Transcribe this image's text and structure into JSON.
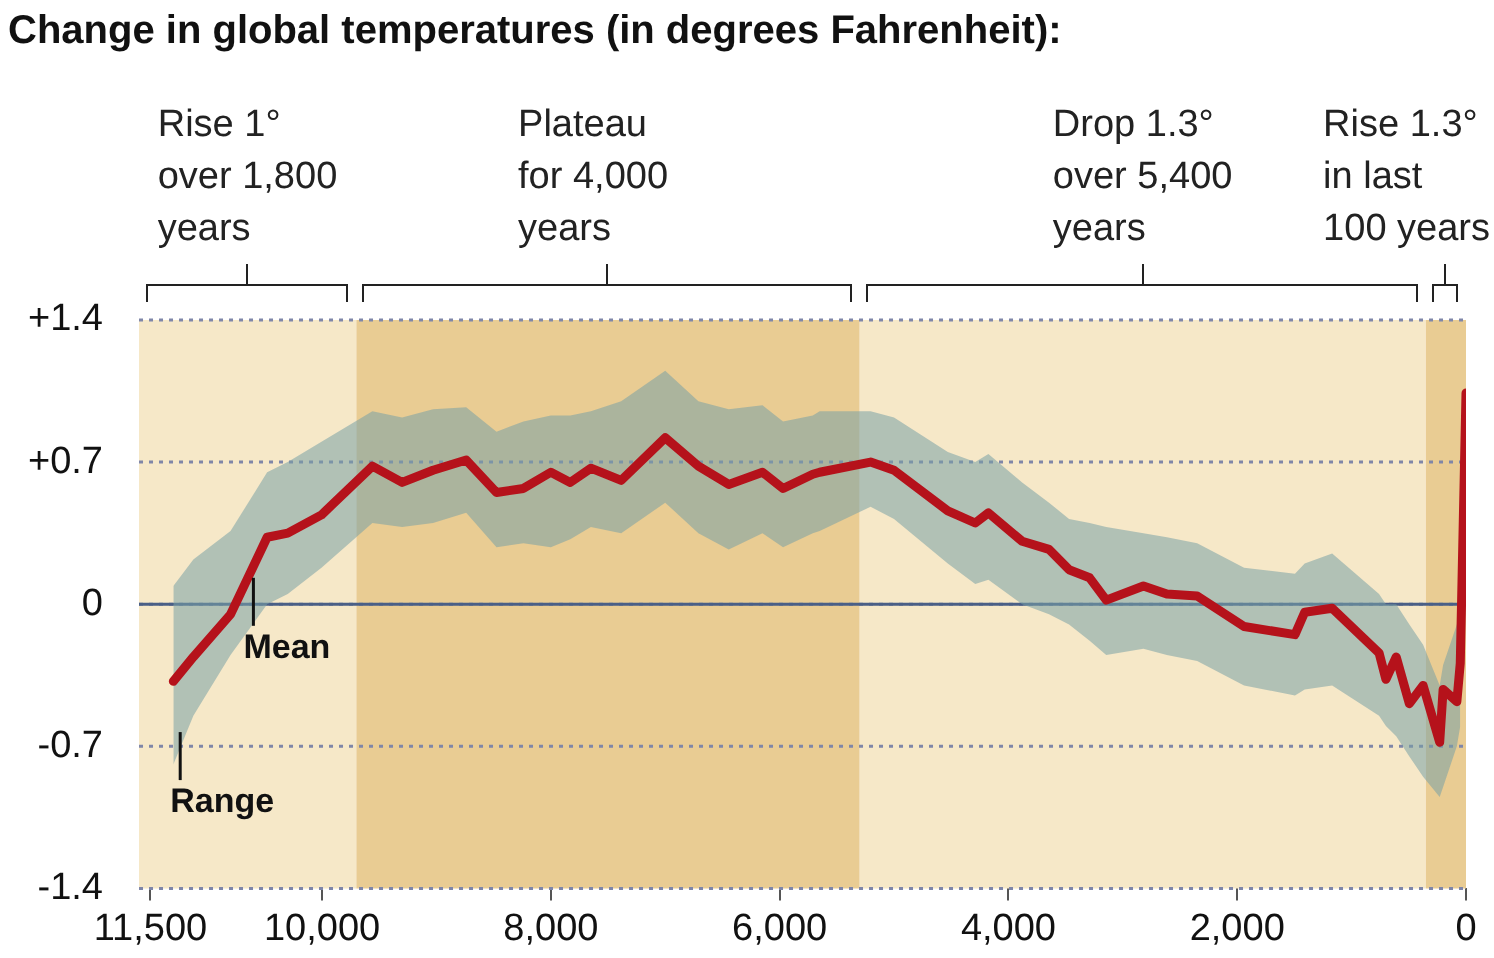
{
  "chart_data": {
    "type": "line",
    "title": "Change in global temperatures (in degrees Fahrenheit):",
    "x": [
      11300,
      11125,
      10800,
      10480,
      10300,
      10005,
      9560,
      9300,
      9030,
      8740,
      8475,
      8240,
      8000,
      7830,
      7650,
      7385,
      7000,
      6710,
      6445,
      6150,
      5970,
      5710,
      5650,
      5205,
      5000,
      4530,
      4290,
      4175,
      3880,
      3645,
      3470,
      3290,
      3145,
      2820,
      2615,
      2350,
      1940,
      1495,
      1410,
      1170,
      760,
      700,
      610,
      495,
      375,
      230,
      200,
      80,
      50,
      0
    ],
    "series": [
      {
        "color": "#b5121b",
        "values": [
          -0.38,
          -0.26,
          -0.05,
          0.33,
          0.35,
          0.44,
          0.68,
          0.6,
          0.66,
          0.71,
          0.55,
          0.57,
          0.65,
          0.6,
          0.67,
          0.61,
          0.82,
          0.68,
          0.59,
          0.65,
          0.57,
          0.64,
          0.65,
          0.7,
          0.66,
          0.46,
          0.4,
          0.45,
          0.31,
          0.27,
          0.17,
          0.13,
          0.02,
          0.09,
          0.05,
          0.04,
          -0.11,
          -0.15,
          -0.04,
          -0.02,
          -0.24,
          -0.37,
          -0.26,
          -0.49,
          -0.4,
          -0.68,
          -0.42,
          -0.48,
          -0.29,
          1.04
        ],
        "upper": [
          0.09,
          0.22,
          0.36,
          0.65,
          0.7,
          0.8,
          0.95,
          0.92,
          0.96,
          0.97,
          0.85,
          0.9,
          0.93,
          0.93,
          0.95,
          1.0,
          1.15,
          1.0,
          0.96,
          0.98,
          0.9,
          0.93,
          0.95,
          0.95,
          0.92,
          0.75,
          0.7,
          0.74,
          0.6,
          0.5,
          0.42,
          0.4,
          0.38,
          0.35,
          0.33,
          0.3,
          0.18,
          0.15,
          0.2,
          0.25,
          0.05,
          0.0,
          0.0,
          -0.1,
          -0.2,
          -0.4,
          -0.3,
          -0.1,
          0.0,
          null
        ],
        "lower": [
          -0.79,
          -0.55,
          -0.25,
          0.0,
          0.05,
          0.18,
          0.4,
          0.38,
          0.4,
          0.45,
          0.28,
          0.3,
          0.28,
          0.32,
          0.38,
          0.35,
          0.5,
          0.35,
          0.27,
          0.35,
          0.28,
          0.35,
          0.36,
          0.48,
          0.42,
          0.2,
          0.1,
          0.12,
          0.0,
          -0.05,
          -0.1,
          -0.18,
          -0.25,
          -0.22,
          -0.25,
          -0.28,
          -0.4,
          -0.45,
          -0.42,
          -0.4,
          -0.55,
          -0.6,
          -0.65,
          -0.75,
          -0.85,
          -0.95,
          -0.9,
          -0.7,
          -0.6,
          null
        ]
      }
    ],
    "xlim": [
      11600,
      0
    ],
    "xticks": [
      {
        "value": 11500,
        "label": "11,500"
      },
      {
        "value": 10000,
        "label": "10,000"
      },
      {
        "value": 8000,
        "label": "8,000"
      },
      {
        "value": 6000,
        "label": "6,000"
      },
      {
        "value": 4000,
        "label": "4,000"
      },
      {
        "value": 2000,
        "label": "2,000"
      },
      0
    ],
    "ylim": [
      -1.4,
      1.4
    ],
    "yticks": [
      {
        "value": 1.4,
        "label": "+1.4"
      },
      {
        "value": 0.7,
        "label": "+0.7"
      },
      0,
      {
        "value": -0.7,
        "label": "-0.7"
      },
      {
        "value": -1.4,
        "label": "-1.4"
      }
    ],
    "grid": "y",
    "legend": false,
    "marker": "none",
    "ref_lines": [
      {
        "axis": "y",
        "value": 0,
        "color": "#4a5f86"
      }
    ],
    "bands": [
      {
        "axis": "x",
        "from": 11600,
        "to": 9700,
        "label": "Rise 1°\nover 1,800\nyears",
        "color": "#f6e8c8"
      },
      {
        "axis": "x",
        "from": 9700,
        "to": 5300,
        "label": "Plateau\nfor 4,000\nyears",
        "color": "#e9cc93"
      },
      {
        "axis": "x",
        "from": 5300,
        "to": 350,
        "label": "Drop 1.3°\nover 5,400\nyears",
        "color": "#f6e8c8"
      },
      {
        "axis": "x",
        "from": 350,
        "to": 0,
        "label": "Rise 1.3°\nin last\n100 years",
        "color": "#e9cc93"
      }
    ],
    "annotations": [
      {
        "text": "Mean",
        "x": 10600,
        "y": 0.13
      },
      {
        "text": "Range",
        "x": 11240,
        "y": -0.63
      }
    ]
  }
}
